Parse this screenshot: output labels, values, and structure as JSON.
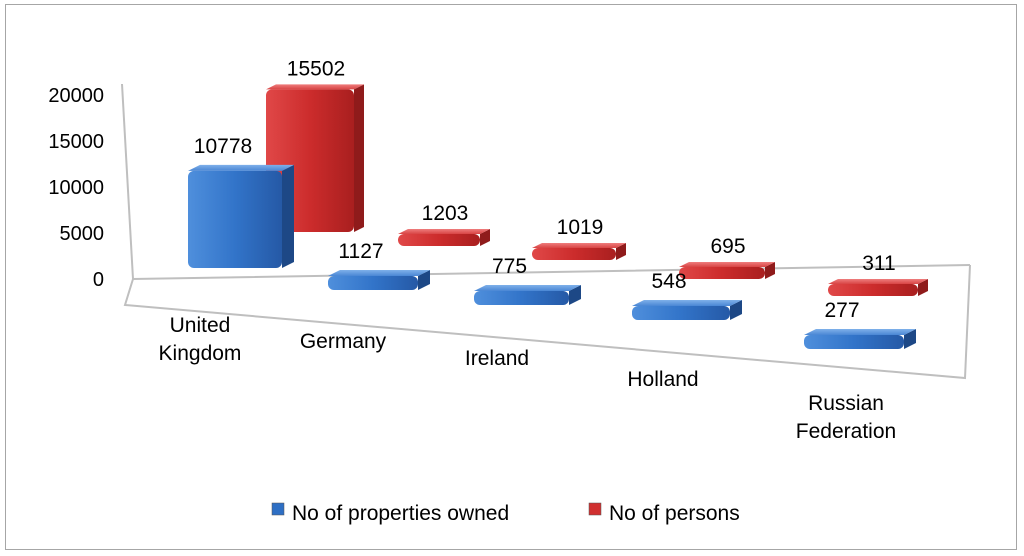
{
  "chart_data": {
    "type": "bar",
    "title": "",
    "xlabel": "",
    "ylabel": "",
    "ylim": [
      0,
      20000
    ],
    "yticks": [
      "0",
      "5000",
      "10000",
      "15000",
      "20000"
    ],
    "categories": [
      "United Kingdom",
      "Germany",
      "Ireland",
      "Holland",
      "Russian Federation"
    ],
    "category_lines": [
      [
        "United",
        "Kingdom"
      ],
      [
        "Germany"
      ],
      [
        "Ireland"
      ],
      [
        "Holland"
      ],
      [
        "Russian",
        "Federation"
      ]
    ],
    "series": [
      {
        "name": "No of properties owned",
        "values": [
          10778,
          1127,
          775,
          548,
          277
        ],
        "color": "#2e6fc4"
      },
      {
        "name": "No of persons",
        "values": [
          15502,
          1203,
          1019,
          695,
          311
        ],
        "color": "#d03030"
      }
    ],
    "legend_position": "bottom",
    "grid": false,
    "style": "3d-bar"
  }
}
